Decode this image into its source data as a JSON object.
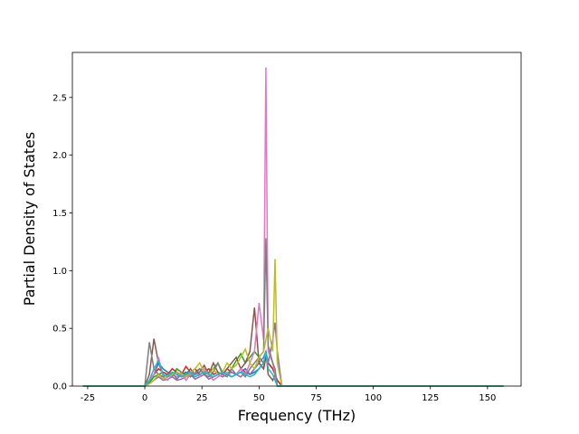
{
  "chart_data": {
    "type": "line",
    "x_label": "Frequency (THz)",
    "y_label": "Partial Density of States",
    "x": [
      -27,
      0,
      2,
      4,
      6,
      8,
      10,
      12,
      14,
      16,
      18,
      20,
      22,
      24,
      26,
      28,
      30,
      32,
      34,
      36,
      38,
      40,
      42,
      44,
      46,
      48,
      50,
      52,
      53,
      54,
      56,
      57,
      58,
      60,
      157
    ],
    "series": [
      {
        "color": "#1f77b4",
        "values": [
          0,
          0,
          0.05,
          0.1,
          0.2,
          0.15,
          0.12,
          0.1,
          0.08,
          0.1,
          0.12,
          0.1,
          0.08,
          0.1,
          0.12,
          0.1,
          0.08,
          0.1,
          0.12,
          0.1,
          0.08,
          0.1,
          0.12,
          0.15,
          0.1,
          0.12,
          0.15,
          0.2,
          0.25,
          0.2,
          0.15,
          0.1,
          0.05,
          0,
          0
        ]
      },
      {
        "color": "#2ca02c",
        "values": [
          0,
          0,
          0.03,
          0.08,
          0.1,
          0.12,
          0.1,
          0.08,
          0.15,
          0.12,
          0.1,
          0.08,
          0.12,
          0.15,
          0.1,
          0.12,
          0.15,
          0.2,
          0.12,
          0.1,
          0.15,
          0.22,
          0.28,
          0.2,
          0.25,
          0.3,
          0.25,
          0.2,
          0.3,
          0.2,
          0.15,
          0.1,
          0.05,
          0,
          0
        ]
      },
      {
        "color": "#d62728",
        "values": [
          0,
          0,
          0.05,
          0.1,
          0.15,
          0.12,
          0.1,
          0.15,
          0.12,
          0.1,
          0.17,
          0.12,
          0.15,
          0.1,
          0.12,
          0.15,
          0.1,
          0.12,
          0.1,
          0.15,
          0.12,
          0.1,
          0.15,
          0.12,
          0.1,
          0.15,
          0.2,
          0.15,
          0.25,
          0.2,
          0.15,
          0.1,
          0.05,
          0,
          0
        ]
      },
      {
        "color": "#9467bd",
        "values": [
          0,
          0,
          0.02,
          0.05,
          0.08,
          0.05,
          0.06,
          0.08,
          0.05,
          0.06,
          0.08,
          0.1,
          0.06,
          0.08,
          0.1,
          0.06,
          0.08,
          0.1,
          0.08,
          0.1,
          0.12,
          0.1,
          0.08,
          0.12,
          0.1,
          0.15,
          0.2,
          0.25,
          0.3,
          0.2,
          0.4,
          0.55,
          0.3,
          0,
          0
        ]
      },
      {
        "color": "#8c564b",
        "values": [
          0,
          0,
          0.1,
          0.41,
          0.2,
          0.1,
          0.08,
          0.1,
          0.12,
          0.08,
          0.1,
          0.15,
          0.1,
          0.12,
          0.18,
          0.1,
          0.2,
          0.12,
          0.1,
          0.15,
          0.2,
          0.25,
          0.15,
          0.2,
          0.3,
          0.68,
          0.2,
          0.15,
          0.3,
          0.1,
          0.05,
          0.1,
          0,
          0,
          0
        ]
      },
      {
        "color": "#e377c2",
        "values": [
          0,
          0,
          0.05,
          0.1,
          0.25,
          0.08,
          0.05,
          0.1,
          0.08,
          0.12,
          0.05,
          0.1,
          0.12,
          0.08,
          0.15,
          0.1,
          0.05,
          0.08,
          0.1,
          0.12,
          0.08,
          0.1,
          0.15,
          0.1,
          0.2,
          0.3,
          0.72,
          0.4,
          2.76,
          0.3,
          0.2,
          0.1,
          0,
          0,
          0
        ]
      },
      {
        "color": "#7f7f7f",
        "values": [
          0,
          0,
          0.38,
          0.15,
          0.1,
          0.08,
          0.1,
          0.12,
          0.06,
          0.1,
          0.08,
          0.12,
          0.1,
          0.15,
          0.1,
          0.08,
          0.12,
          0.2,
          0.1,
          0.08,
          0.15,
          0.1,
          0.12,
          0.08,
          0.15,
          0.2,
          0.25,
          0.3,
          1.28,
          0.35,
          0.2,
          0.15,
          0,
          0,
          0
        ]
      },
      {
        "color": "#bcbd22",
        "values": [
          0,
          0,
          0.02,
          0.05,
          0.1,
          0.06,
          0.08,
          0.1,
          0.12,
          0.1,
          0.08,
          0.12,
          0.15,
          0.2,
          0.12,
          0.1,
          0.15,
          0.1,
          0.12,
          0.2,
          0.15,
          0.18,
          0.25,
          0.32,
          0.2,
          0.15,
          0.25,
          0.3,
          0.4,
          0.5,
          0.3,
          1.1,
          0.2,
          0,
          0
        ]
      },
      {
        "color": "#17becf",
        "values": [
          0,
          0,
          0.05,
          0.15,
          0.22,
          0.1,
          0.08,
          0.12,
          0.1,
          0.08,
          0.1,
          0.12,
          0.08,
          0.1,
          0.12,
          0.1,
          0.08,
          0.1,
          0.12,
          0.1,
          0.08,
          0.1,
          0.12,
          0.1,
          0.08,
          0.1,
          0.15,
          0.2,
          0.3,
          0.15,
          0.1,
          0.05,
          0,
          0,
          0
        ]
      }
    ],
    "xlim": [
      -31.7,
      164.7
    ],
    "ylim": [
      0,
      2.89
    ],
    "xticks": [
      -25,
      0,
      25,
      50,
      75,
      100,
      125,
      150
    ],
    "yticks": [
      {
        "value": 0,
        "label": "0.0"
      },
      0.5,
      {
        "value": 1,
        "label": "1.0"
      },
      1.5,
      {
        "value": 2,
        "label": "2.0"
      },
      2.5
    ]
  }
}
